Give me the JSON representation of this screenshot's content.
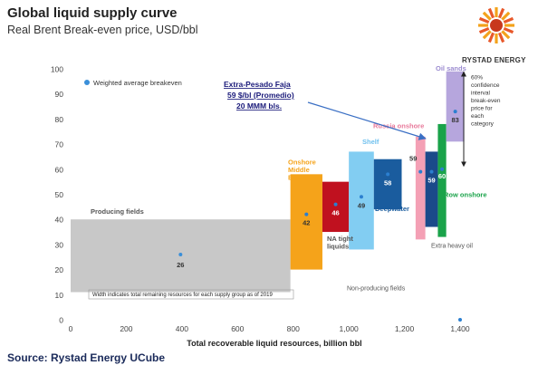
{
  "header": {
    "title": "Global liquid supply curve",
    "subtitle": "Real Brent Break-even price, USD/bbl"
  },
  "footer": {
    "source": "Source: Rystad Energy UCube"
  },
  "logo": {
    "text": "RYSTAD ENERGY",
    "icon": "sun-burst-logo-icon"
  },
  "chart_data": {
    "type": "bar",
    "title": "Global liquid supply curve",
    "subtitle": "Real Brent Break-even price, USD/bbl",
    "xlabel": "Total recoverable liquid resources, billion bbl",
    "ylabel": "",
    "xlim": [
      0,
      1400
    ],
    "ylim": [
      0,
      100
    ],
    "x_ticks": [
      0,
      200,
      400,
      600,
      800,
      1000,
      1200,
      1400
    ],
    "y_ticks": [
      0,
      10,
      20,
      30,
      40,
      50,
      60,
      70,
      80,
      90,
      100
    ],
    "grid": false,
    "legend": {
      "entry": "Weighted average breakeven",
      "placement": "top-left"
    },
    "blocks": [
      {
        "name": "Producing fields",
        "x0": 0,
        "x1": 790,
        "low": 11,
        "high": 40,
        "avg": 26,
        "label": "26",
        "color": "#c8c8c8"
      },
      {
        "name": "Onshore Middle East",
        "x0": 790,
        "x1": 905,
        "low": 20,
        "high": 58,
        "avg": 42,
        "label": "42",
        "color": "#f5a31a"
      },
      {
        "name": "NA tight liquids",
        "x0": 905,
        "x1": 1000,
        "low": 35,
        "high": 55,
        "avg": 46,
        "label": "46",
        "color": "#c0111f"
      },
      {
        "name": "Shelf",
        "x0": 1000,
        "x1": 1090,
        "low": 28,
        "high": 67,
        "avg": 49,
        "label": "49",
        "color": "#82cdf2"
      },
      {
        "name": "Deepwater",
        "x0": 1090,
        "x1": 1190,
        "low": 44,
        "high": 64,
        "avg": 58,
        "label": "58",
        "color": "#1a5c9e"
      },
      {
        "name": "Russia onshore",
        "x0": 1240,
        "x1": 1275,
        "low": 32,
        "high": 73,
        "avg": 59,
        "label": "59",
        "color": "#f4a0b5"
      },
      {
        "name": "Extra heavy oil",
        "x0": 1275,
        "x1": 1320,
        "low": 37,
        "high": 67,
        "avg": 59,
        "label": "59",
        "color": "#1b4a8a"
      },
      {
        "name": "Row onshore",
        "x0": 1320,
        "x1": 1350,
        "low": 33,
        "high": 78,
        "avg": 60,
        "label": "60",
        "color": "#1aa34a"
      },
      {
        "name": "Oil sands",
        "x0": 1350,
        "x1": 1415,
        "low": 71,
        "high": 99,
        "avg": 83,
        "label": "83",
        "color": "#b6a6dd"
      }
    ],
    "outlier": {
      "x": 1400,
      "y": 0
    },
    "annotations": {
      "producing": "Producing fields",
      "onshore_me": "Onshore Middle East",
      "na_tight": "NA tight liquids",
      "shelf": "Shelf",
      "deepwater": "Deepwater",
      "russia": "Russia onshore",
      "extra_heavy": "Extra heavy oil",
      "row_onshore": "Row onshore",
      "oil_sands": "Oil sands",
      "non_producing": "Non-producing fields",
      "width_note": "Width indicates total remaining resources for each supply group as of 2019",
      "confidence": "60% confidence interval break-even price for each category",
      "callout_line1": "Extra-Pesado  Faja",
      "callout_line2": "59 $/bl  (Promedio)",
      "callout_line3": "20 MMM bls."
    }
  },
  "colors": {
    "label_text": "#555555",
    "callout_text": "#1a1a7a",
    "arrow": "#3a6fc4",
    "marker": "#3a8fd9",
    "deepwater_label": "#1a5c9e",
    "russia_label": "#e8799a",
    "shelf_label": "#6ec0ee",
    "me_label": "#f5a31a",
    "oilsands_label": "#9b8bd0",
    "row_label": "#1aa34a"
  }
}
